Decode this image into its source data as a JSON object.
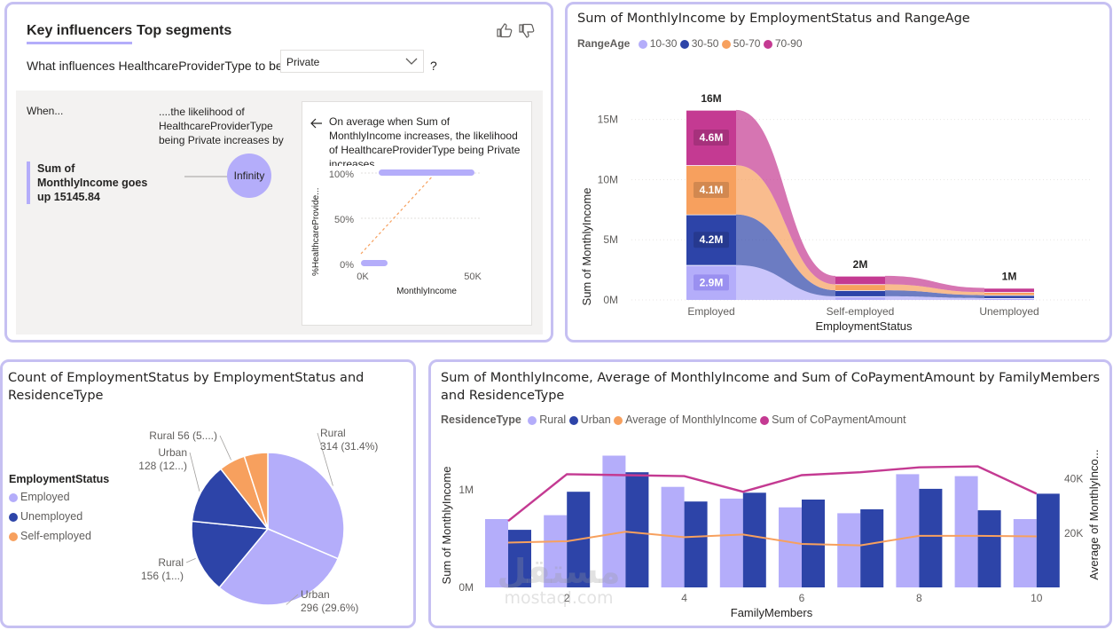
{
  "key_influencers": {
    "tabs": [
      "Key influencers",
      "Top segments"
    ],
    "question_prefix": "What influences HealthcareProviderType to be",
    "dropdown_value": "Private",
    "question_suffix": "?",
    "when_label": "When...",
    "likelihood_label": "....the likelihood of HealthcareProviderType being Private increases by",
    "factor_text": "Sum of MonthlyIncome goes up 15145.84",
    "bubble_value": "Infinity",
    "detail_text": "On average when Sum of MonthlyIncome increases, the likelihood of HealthcareProviderType being Private increases.",
    "mini_chart": {
      "y_label": "%HealthcareProvide...",
      "x_label": "MonthlyIncome",
      "y_ticks": [
        "100%",
        "50%",
        "0%"
      ],
      "x_ticks": [
        "0K",
        "50K"
      ]
    }
  },
  "colors": {
    "lavender": "#b4adfa",
    "navy": "#2d44a8",
    "orange": "#f7a05e",
    "magenta": "#c43a92",
    "border": "#c6c0f2"
  },
  "ribbon_chart": {
    "title": "Sum of MonthlyIncome by EmploymentStatus and RangeAge",
    "legend_title": "RangeAge",
    "xlabel": "EmploymentStatus",
    "ylabel": "Sum of MonthlyIncome",
    "y_ticks": [
      "15M",
      "10M",
      "5M",
      "0M"
    ],
    "chart_data": {
      "type": "bar",
      "categories": [
        "Employed",
        "Self-employed",
        "Unemployed"
      ],
      "series": [
        {
          "name": "10-30",
          "values": [
            2.9,
            0.3,
            0.15
          ]
        },
        {
          "name": "30-50",
          "values": [
            4.2,
            0.5,
            0.25
          ]
        },
        {
          "name": "50-70",
          "values": [
            4.1,
            0.5,
            0.25
          ]
        },
        {
          "name": "70-90",
          "values": [
            4.6,
            0.7,
            0.35
          ]
        }
      ],
      "totals": [
        "16M",
        "2M",
        "1M"
      ],
      "segment_labels": [
        "2.9M",
        "4.2M",
        "4.1M",
        "4.6M"
      ],
      "ylim": [
        0,
        16
      ]
    }
  },
  "pie_chart": {
    "title": "Count of EmploymentStatus by EmploymentStatus and ResidenceType",
    "legend_title": "EmploymentStatus",
    "legend": [
      "Employed",
      "Unemployed",
      "Self-employed"
    ],
    "chart_data": {
      "type": "pie",
      "slices": [
        {
          "label": "Rural",
          "value": 314,
          "text": "314 (31.4%)"
        },
        {
          "label": "Urban",
          "value": 296,
          "text": "296 (29.6%)"
        },
        {
          "label": "Rural",
          "value": 156,
          "text": "156 (1...)"
        },
        {
          "label": "Urban",
          "value": 128,
          "text": "128 (12...)"
        },
        {
          "label": "Rural 56 (5....)",
          "value": 56,
          "text": ""
        },
        {
          "label": "",
          "value": 50,
          "text": ""
        }
      ]
    }
  },
  "combo_chart": {
    "title": "Sum of MonthlyIncome, Average of MonthlyIncome and Sum of CoPaymentAmount by FamilyMembers and ResidenceType",
    "legend_title": "ResidenceType",
    "legend": [
      "Rural",
      "Urban",
      "Average of MonthlyIncome",
      "Sum of CoPaymentAmount"
    ],
    "xlabel": "FamilyMembers",
    "ylabel_left": "Sum of MonthlyIncome",
    "ylabel_right": "Average of MonthlyInco...",
    "y_ticks_left": [
      "1M",
      "0M"
    ],
    "y_ticks_right": [
      "40K",
      "20K"
    ],
    "x_ticks": [
      "2",
      "4",
      "6",
      "8",
      "10"
    ],
    "chart_data": {
      "type": "bar",
      "x": [
        1,
        2,
        3,
        4,
        5,
        6,
        7,
        8,
        9,
        10
      ],
      "series": [
        {
          "name": "Rural",
          "values": [
            0.7,
            0.74,
            1.35,
            1.03,
            0.91,
            0.82,
            0.76,
            1.16,
            1.14,
            0.7
          ]
        },
        {
          "name": "Urban",
          "values": [
            0.59,
            0.98,
            1.18,
            0.88,
            0.97,
            0.9,
            0.8,
            1.01,
            0.79,
            0.96
          ]
        },
        {
          "name": "Average of MonthlyIncome",
          "values": [
            16.5,
            17.0,
            20.5,
            18.5,
            19.5,
            16.0,
            15.5,
            19.0,
            19.0,
            18.8
          ]
        },
        {
          "name": "Sum of CoPaymentAmount",
          "values": [
            0.68,
            1.16,
            1.15,
            1.14,
            0.98,
            1.15,
            1.18,
            1.23,
            1.24,
            0.96
          ]
        }
      ],
      "ylim_left": [
        0,
        1.5
      ],
      "ylim_right": [
        0,
        50
      ]
    }
  },
  "watermark": {
    "arabic": "مستقل",
    "latin": "mostaql.com"
  }
}
